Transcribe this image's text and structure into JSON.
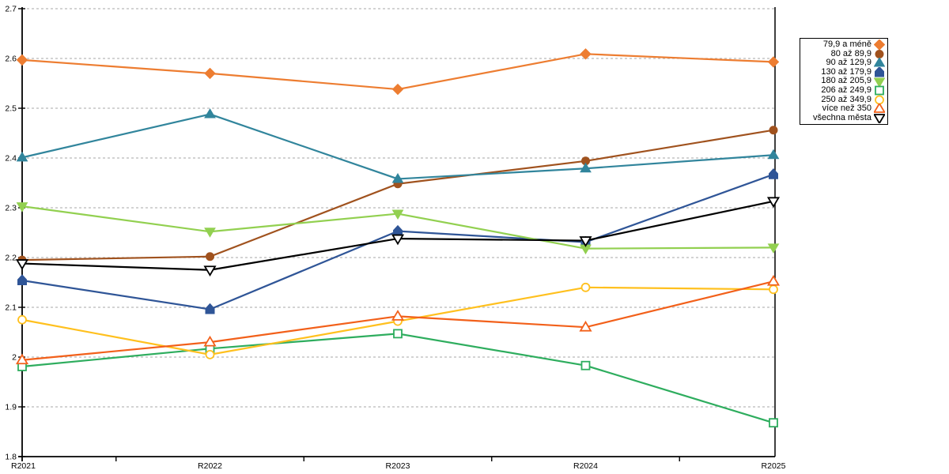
{
  "chart_data": {
    "type": "line",
    "title": "",
    "xlabel": "",
    "ylabel": "",
    "categories": [
      "R2021",
      "R2022",
      "R2023",
      "R2024",
      "R2025"
    ],
    "y_ticks": [
      "1.8",
      "1.9",
      "2",
      "2.1",
      "2.2",
      "2.3",
      "2.4",
      "2.5",
      "2.6",
      "2.7"
    ],
    "ylim": [
      1.8,
      2.7
    ],
    "grid": "horizontal dashed",
    "legend_position": "right",
    "colors": {
      "gridline": "#b9b9b9",
      "axis": "#000000"
    },
    "series": [
      {
        "name": "79,9 a méně",
        "color": "#ED7D31",
        "marker": "diamond",
        "fill": "solid",
        "values": [
          2.597,
          2.57,
          2.538,
          2.609,
          2.593
        ]
      },
      {
        "name": "80 až 89,9",
        "color": "#A0521E",
        "marker": "circle",
        "fill": "solid",
        "values": [
          2.195,
          2.202,
          2.348,
          2.394,
          2.456
        ]
      },
      {
        "name": "90 až 129,9",
        "color": "#31859C",
        "marker": "triangle-up",
        "fill": "solid",
        "values": [
          2.401,
          2.488,
          2.358,
          2.379,
          2.406
        ]
      },
      {
        "name": "130 až 179,9",
        "color": "#2F5597",
        "marker": "pentagon",
        "fill": "solid",
        "values": [
          2.154,
          2.096,
          2.253,
          2.231,
          2.367
        ]
      },
      {
        "name": "180 až 205,9",
        "color": "#92D050",
        "marker": "triangle-down",
        "fill": "solid",
        "values": [
          2.303,
          2.252,
          2.288,
          2.218,
          2.22
        ]
      },
      {
        "name": "206 až 249,9",
        "color": "#2EAD5E",
        "marker": "square",
        "fill": "open",
        "values": [
          1.981,
          2.017,
          2.047,
          1.983,
          1.868
        ]
      },
      {
        "name": "250 až 349,9",
        "color": "#FFC01E",
        "marker": "circle",
        "fill": "open",
        "values": [
          2.075,
          2.005,
          2.072,
          2.14,
          2.136
        ]
      },
      {
        "name": "více než 350",
        "color": "#F2601A",
        "marker": "triangle-up",
        "fill": "open",
        "values": [
          1.994,
          2.03,
          2.082,
          2.06,
          2.152
        ]
      },
      {
        "name": "všechna města",
        "color": "#000000",
        "marker": "triangle-down",
        "fill": "open",
        "values": [
          2.188,
          2.175,
          2.238,
          2.234,
          2.313
        ]
      }
    ]
  }
}
